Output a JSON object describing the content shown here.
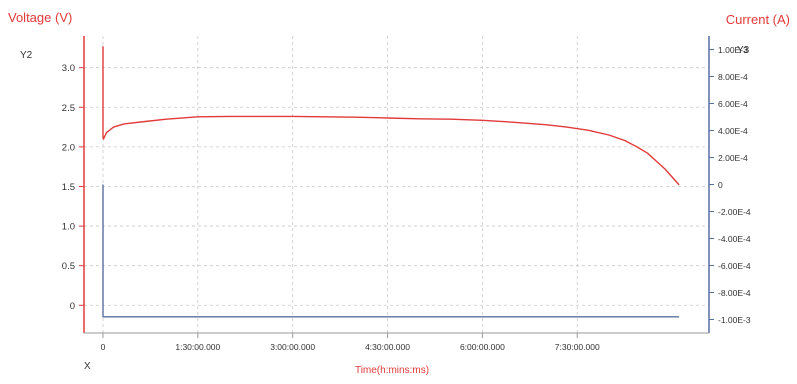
{
  "chart_data": {
    "type": "line",
    "left_title": "Voltage  (V)",
    "right_title": "Current (A)",
    "left_axis_label": "Y2",
    "right_axis_label": "Y3",
    "x_axis_label": "X",
    "xlabel": "Time(h:mins:ms)",
    "grid": true,
    "x_unit": "seconds",
    "xlim": [
      -1080,
      34500
    ],
    "x_ticks": [
      {
        "value": 0,
        "label": "0"
      },
      {
        "value": 5400,
        "label": "1:30:00.000"
      },
      {
        "value": 10800,
        "label": "3:00:00.000"
      },
      {
        "value": 16200,
        "label": "4:30:00.000"
      },
      {
        "value": 21600,
        "label": "6:00:00.000"
      },
      {
        "value": 27000,
        "label": "7:30:00.000"
      }
    ],
    "y_left": {
      "lim": [
        -0.35,
        3.4
      ],
      "ticks": [
        {
          "value": 3.0,
          "label": "3.0"
        },
        {
          "value": 2.5,
          "label": "2.5"
        },
        {
          "value": 2.0,
          "label": "2.0"
        },
        {
          "value": 1.5,
          "label": "1.5"
        },
        {
          "value": 1.0,
          "label": "1.0"
        },
        {
          "value": 0.5,
          "label": "0.5"
        },
        {
          "value": 0.0,
          "label": "0"
        }
      ]
    },
    "y_right": {
      "lim": [
        -0.0011,
        0.0011
      ],
      "ticks": [
        {
          "value": 0.001,
          "label": "1.00E-3"
        },
        {
          "value": 0.0008,
          "label": "8.00E-4"
        },
        {
          "value": 0.0006,
          "label": "6.00E-4"
        },
        {
          "value": 0.0004,
          "label": "4.00E-4"
        },
        {
          "value": 0.0002,
          "label": "2.00E-4"
        },
        {
          "value": 0.0,
          "label": "0"
        },
        {
          "value": -0.0002,
          "label": "-2.00E-4"
        },
        {
          "value": -0.0004,
          "label": "-4.00E-4"
        },
        {
          "value": -0.0006,
          "label": "-6.00E-4"
        },
        {
          "value": -0.0008,
          "label": "-8.00E-4"
        },
        {
          "value": -0.001,
          "label": "-1.00E-3"
        }
      ]
    },
    "series": [
      {
        "axis": "left",
        "color": "#e23a3a",
        "x": [
          0,
          0,
          0,
          30,
          200,
          600,
          1200,
          2400,
          3600,
          5400,
          7200,
          9000,
          10800,
          12600,
          14400,
          16200,
          18000,
          19800,
          21600,
          23400,
          25200,
          26400,
          27600,
          28800,
          29700,
          30400,
          31000,
          31500,
          32000,
          32400,
          32800
        ],
        "y": [
          3.27,
          3.27,
          2.12,
          2.1,
          2.18,
          2.25,
          2.29,
          2.32,
          2.35,
          2.38,
          2.385,
          2.385,
          2.385,
          2.38,
          2.375,
          2.365,
          2.355,
          2.35,
          2.335,
          2.31,
          2.28,
          2.25,
          2.21,
          2.15,
          2.08,
          2.0,
          1.92,
          1.82,
          1.72,
          1.62,
          1.52
        ]
      },
      {
        "axis": "right",
        "color": "#5a6fa0",
        "x": [
          0,
          0,
          0,
          32800
        ],
        "y": [
          0.0,
          0.0,
          -0.00098,
          -0.00098
        ]
      }
    ]
  }
}
